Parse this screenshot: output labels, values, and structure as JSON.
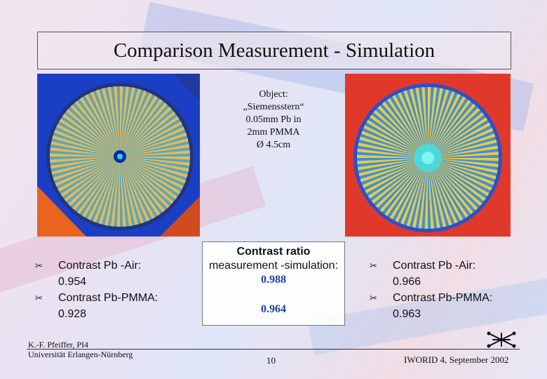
{
  "title": "Comparison Measurement - Simulation",
  "object": {
    "lines": [
      "Object:",
      "„Siemensstern“",
      "0.05mm Pb in",
      "2mm PMMA",
      "Ø 4.5cm"
    ]
  },
  "left_stats": [
    {
      "label": "Contrast Pb -Air:",
      "value": "0.954"
    },
    {
      "label": "Contrast Pb-PMMA:",
      "value": "0.928"
    }
  ],
  "right_stats": [
    {
      "label": "Contrast Pb -Air:",
      "value": "0.966"
    },
    {
      "label": "Contrast Pb-PMMA:",
      "value": "0.963"
    }
  ],
  "center": {
    "title": "Contrast ratio",
    "subtitle": "measurement -simulation:",
    "value1": "0.988",
    "value2": "0.964"
  },
  "footer": {
    "author_line1": "K.-F. Pfeiffer, PI4",
    "author_line2": "Universität Erlangen-Nürnberg",
    "page": "10",
    "conference": "IWORID 4, September 2002"
  },
  "icons": {
    "bullet": "scissors-icon",
    "logo": "network-logo-icon"
  },
  "colors": {
    "accent_value": "#1d3fa8",
    "measurement_bg": "#1b3fc4",
    "simulation_bg": "#e0392b"
  }
}
